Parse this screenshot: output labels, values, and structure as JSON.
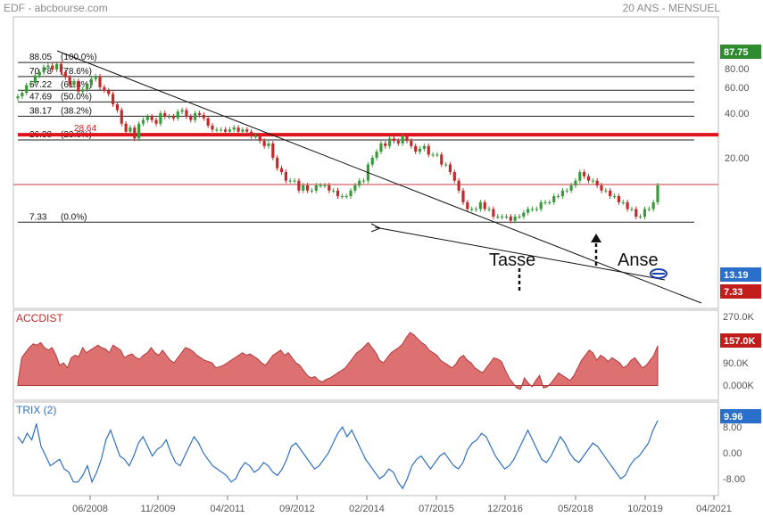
{
  "header": {
    "symbol": "EDF - abcbourse.com",
    "period": "20 ANS - MENSUEL"
  },
  "colors": {
    "up": "#3a9b3a",
    "down": "#c42a2a",
    "resistance": "#e0131b",
    "area": "#dd7070",
    "trix": "#2f6fc0",
    "badge_green": "#2e8b2e",
    "badge_blue": "#2a6fc9",
    "badge_red": "#c21d1d"
  },
  "chart_data": [
    {
      "type": "candlestick",
      "panel": "price",
      "x_ticks": [
        "06/2008",
        "11/2009",
        "04/2011",
        "09/2012",
        "02/2014",
        "07/2015",
        "12/2016",
        "05/2018",
        "10/2019",
        "04/2021"
      ],
      "y_ticks": [
        "20.00",
        "40.00",
        "60.00",
        "80.00"
      ],
      "ylim": [
        4,
        92
      ],
      "closes": [
        52,
        55,
        62,
        64,
        72,
        76,
        82,
        84,
        79,
        86,
        76,
        70,
        62,
        66,
        56,
        58,
        62,
        68,
        71,
        60,
        57,
        54,
        46,
        42,
        34,
        30,
        32,
        27,
        34,
        36,
        38,
        36,
        34,
        40,
        38,
        38,
        37,
        41,
        42,
        38,
        36,
        40,
        39,
        37,
        33,
        31,
        31,
        31,
        30,
        31,
        32,
        30,
        31,
        30,
        28,
        28,
        26,
        24,
        25,
        20,
        17,
        16,
        14,
        14,
        14,
        12,
        13,
        12,
        12,
        13,
        13,
        13,
        12,
        12,
        11,
        11,
        11,
        12,
        13,
        14,
        14,
        18,
        20,
        22,
        25,
        24,
        27,
        26,
        25,
        28,
        26,
        24,
        22,
        23,
        24,
        21,
        21,
        21,
        18,
        18,
        16,
        14,
        12,
        10,
        9,
        9,
        9,
        10,
        9,
        9,
        8,
        8,
        8,
        8,
        7.5,
        8,
        8,
        8.5,
        9,
        9,
        9,
        10,
        10,
        10,
        11,
        11,
        12,
        12,
        13,
        14,
        16,
        15,
        14,
        14,
        13,
        12,
        12,
        11,
        11,
        10,
        10,
        9,
        9,
        8,
        8,
        9,
        9,
        10,
        13
      ],
      "fib_levels": [
        {
          "value": 88.05,
          "label": "88.05",
          "pct": "(100.0%)"
        },
        {
          "value": 70.78,
          "label": "70.78",
          "pct": "(78.6%)"
        },
        {
          "value": 57.22,
          "label": "57.22",
          "pct": "(61.8%)"
        },
        {
          "value": 47.69,
          "label": "47.69",
          "pct": "(50.0%)"
        },
        {
          "value": 38.17,
          "label": "38.17",
          "pct": "(38.2%)"
        },
        {
          "value": 26.38,
          "label": "26.38",
          "pct": "(23.6%)"
        },
        {
          "value": 7.33,
          "label": "7.33",
          "pct": "(0.0%)"
        }
      ],
      "resistance": {
        "value": 28.64,
        "label": "28.64"
      },
      "current_line": 13.19,
      "badges": [
        {
          "value": 87.75,
          "label": "87.75",
          "color": "green"
        },
        {
          "value": 13.19,
          "label": "13.19",
          "color": "blue"
        },
        {
          "value": 7.33,
          "label": "7.33",
          "color": "red"
        }
      ],
      "annotations": [
        "Tasse",
        "Anse"
      ]
    },
    {
      "type": "area",
      "panel": "accdist",
      "title": "ACCDIST",
      "y_ticks": [
        "270.0K",
        "180.0K",
        "90.0K",
        "0.000K"
      ],
      "ylim": [
        -30,
        270
      ],
      "last": "157.0K",
      "values": [
        10,
        110,
        130,
        150,
        165,
        160,
        170,
        150,
        140,
        150,
        120,
        80,
        90,
        70,
        110,
        120,
        115,
        150,
        130,
        140,
        150,
        160,
        150,
        145,
        130,
        160,
        150,
        140,
        110,
        120,
        125,
        110,
        105,
        120,
        130,
        150,
        130,
        120,
        140,
        120,
        100,
        90,
        110,
        130,
        150,
        145,
        135,
        120,
        110,
        100,
        95,
        90,
        70,
        75,
        80,
        90,
        100,
        110,
        120,
        130,
        120,
        125,
        115,
        105,
        90,
        80,
        100,
        120,
        130,
        140,
        120,
        130,
        110,
        90,
        80,
        60,
        40,
        30,
        35,
        20,
        15,
        25,
        30,
        40,
        50,
        60,
        70,
        90,
        110,
        130,
        140,
        155,
        170,
        150,
        130,
        100,
        90,
        110,
        130,
        140,
        150,
        165,
        190,
        210,
        200,
        185,
        170,
        160,
        140,
        130,
        120,
        100,
        90,
        80,
        70,
        85,
        110,
        120,
        100,
        90,
        70,
        60,
        50,
        70,
        90,
        110,
        105,
        95,
        60,
        30,
        10,
        -10,
        -15,
        30,
        10,
        -5,
        20,
        40,
        -10,
        -5,
        10,
        30,
        50,
        40,
        30,
        20,
        40,
        70,
        100,
        120,
        140,
        130,
        100,
        120,
        110,
        95,
        110,
        100,
        90,
        70,
        80,
        100,
        110,
        90,
        70,
        80,
        100,
        120,
        157
      ]
    },
    {
      "type": "line",
      "panel": "trix",
      "title": "TRIX (2)",
      "y_ticks": [
        "8.00",
        "0.00",
        "-8.00"
      ],
      "ylim": [
        -12,
        13
      ],
      "last": "9.96",
      "values": [
        5,
        3,
        6,
        4,
        9,
        2,
        -1,
        -4,
        -3,
        -2,
        -5,
        -6,
        -9,
        -9,
        -7,
        -4,
        -9,
        -6,
        -2,
        4,
        7,
        3,
        -1,
        -2,
        -4,
        -1,
        3,
        5,
        2,
        -1,
        1,
        2,
        4,
        0,
        -3,
        -4,
        -1,
        2,
        5,
        3,
        0,
        -2,
        -4,
        -5,
        -6,
        -7,
        -9,
        -8,
        -5,
        -3,
        -4,
        -6,
        -5,
        -3,
        -4,
        -6,
        -7,
        -5,
        -2,
        2,
        3,
        1,
        -1,
        -3,
        -5,
        -4,
        -2,
        0,
        3,
        6,
        8,
        5,
        7,
        4,
        1,
        -2,
        -4,
        -6,
        -8,
        -7,
        -5,
        -6,
        -9,
        -11,
        -8,
        -4,
        -2,
        -1,
        -3,
        -5,
        -3,
        -1,
        0,
        -2,
        -4,
        -5,
        -3,
        1,
        3,
        4,
        6,
        5,
        2,
        -1,
        -3,
        -5,
        -4,
        -2,
        1,
        4,
        7,
        4,
        1,
        -2,
        -3,
        -1,
        2,
        5,
        3,
        0,
        -2,
        -3,
        -1,
        1,
        3,
        2,
        0,
        -2,
        -4,
        -6,
        -8,
        -7,
        -4,
        -2,
        -1,
        1,
        3,
        7,
        10
      ],
      "x_ticks": [
        "06/2008",
        "11/2009",
        "04/2011",
        "09/2012",
        "02/2014",
        "07/2015",
        "12/2016",
        "05/2018",
        "10/2019",
        "04/2021"
      ]
    }
  ]
}
